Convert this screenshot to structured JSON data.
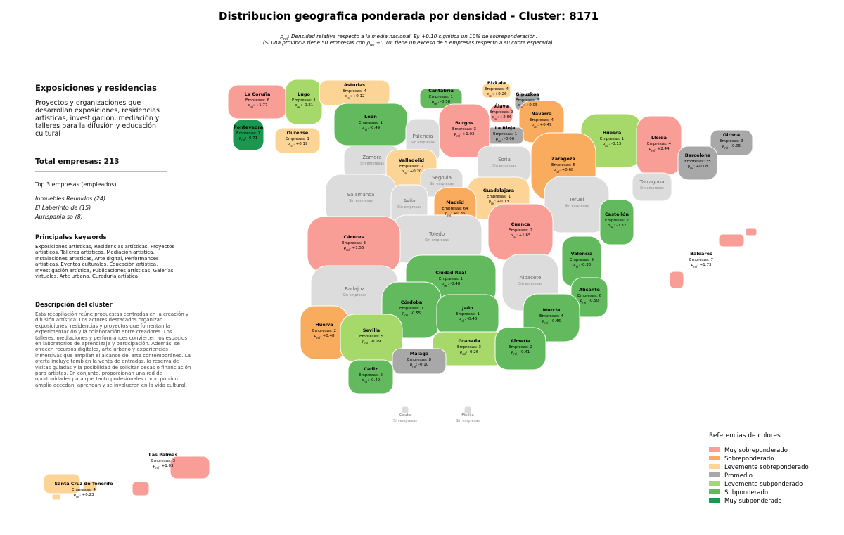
{
  "title": "Distribucion geografica ponderada por densidad - Cluster: 8171",
  "subtitle": [
    [
      {
        "t": "ρ"
      },
      {
        "sub": "rel"
      },
      {
        "t": ": Densidad relativa respecto a la media nacional. Ej: +0.10 significa un 10% de sobreponderación."
      }
    ],
    [
      {
        "t": "(Si una provincia tiene 50 empresas con "
      },
      {
        "t": "ρ"
      },
      {
        "sub": "rel"
      },
      {
        "t": " +0.10, tiene un exceso de 5 empresas respecto a su cuota esperada)."
      }
    ]
  ],
  "sidebar": {
    "heading": "Exposiciones y residencias",
    "summary": "Proyectos y organizaciones que desarrollan exposiciones, residencias artísticas, investigación, mediación y talleres para la difusión y educación cultural",
    "total": "Total empresas: 213",
    "top_title": "Top 3 empresas (empleados)",
    "top": [
      "Inmuebles Reunidos (24)",
      "El Laberinto de (15)",
      "Aurispania sa (8)"
    ],
    "keywords_title": "Principales keywords",
    "keywords": "Exposiciones artísticas, Residencias artísticas, Proyectos artísticos, Talleres artísticos, Mediación artística, Instalaciones artísticas, Arte digital, Performances artísticas, Eventos culturales, Educación artística, Investigación artística, Publicaciones artísticas, Galerías virtuales, Arte urbano, Curaduría artística",
    "description_title": "Descripción del cluster",
    "description": "Esta recopilación reúne propuestas centradas en la creación y difusión artística. Los actores destacados organizan exposiciones, residencias y proyectos que fomentan la experimentación y la colaboración entre creadores. Los talleres, mediaciones y performances convierten los espacios en laboratorios de aprendizaje y participación. Además, se ofrecen recursos digitales, arte urbano y experiencias inmersivas que amplían el alcance del arte contemporáneo. La oferta incluye también la venta de entradas, la reserva de visitas guiadas y la posibilidad de solicitar becas o financiación para artistas. En conjunto, proporcionan una red de oportunidades para que tanto profesionales como público amplio accedan, aprendan y se involucren en la vida cultural."
  },
  "rho_symbol": "ρ",
  "rho_sub": "rel",
  "no_data_label": "Sin empresas",
  "no_data_color": "#dcdcdc",
  "legend": {
    "title": "Referencias de colores",
    "items": [
      {
        "name": "Muy sobreponderado",
        "color": "#f99d97"
      },
      {
        "name": "Sobreponderado",
        "color": "#f9ac5e"
      },
      {
        "name": "Levemente sobreponderado",
        "color": "#fcd495"
      },
      {
        "name": "Promedio",
        "color": "#a8a8a8"
      },
      {
        "name": "Levemente subponderado",
        "color": "#a7d86a"
      },
      {
        "name": "Subponderado",
        "color": "#63ba5e"
      },
      {
        "name": "Muy subponderado",
        "color": "#1a9850"
      }
    ]
  },
  "provinces": [
    {
      "name": "La Coruña",
      "empresas": "Empresas: 6",
      "rho": ": +1.77",
      "category": 0
    },
    {
      "name": "Lugo",
      "empresas": "Empresas: 1",
      "rho": ": -0.21",
      "category": 4
    },
    {
      "name": "Asturias",
      "empresas": "Empresas: 4",
      "rho": ": +0.12",
      "category": 2
    },
    {
      "name": "Cantabria",
      "empresas": "Empresas: 1",
      "rho": ": -0.58",
      "category": 5
    },
    {
      "name": "Bizkaia",
      "empresas": "Empresas: 4",
      "rho": ": +0.26",
      "category": 2
    },
    {
      "name": "Gipuzkoa",
      "empresas": "Empresas: 3",
      "rho": ": +0.05",
      "category": 3
    },
    {
      "name": "Álava",
      "empresas": "Empresas: 3",
      "rho": ": +2.66",
      "category": 0
    },
    {
      "name": "Navarra",
      "empresas": "Empresas: 4",
      "rho": ": +0.49",
      "category": 1
    },
    {
      "name": "La Rioja",
      "empresas": "Empresas: 1",
      "rho": ": -0.06",
      "category": 3
    },
    {
      "name": "Burgos",
      "empresas": "Empresas: 3",
      "rho": ": +1.03",
      "category": 0
    },
    {
      "name": "León",
      "empresas": "Empresas: 1",
      "rho": ": -0.49",
      "category": 5
    },
    {
      "name": "Pontevedra",
      "empresas": "Empresas: 1",
      "rho": ": -0.71",
      "category": 6
    },
    {
      "name": "Ourense",
      "empresas": "Empresas: 1",
      "rho": ": +0.19",
      "category": 2
    },
    {
      "name": "Palencia"
    },
    {
      "name": "Huesca",
      "empresas": "Empresas: 1",
      "rho": ": -0.13",
      "category": 4
    },
    {
      "name": "Lleida",
      "empresas": "Empresas: 4",
      "rho": ": +2.44",
      "category": 0
    },
    {
      "name": "Girona",
      "empresas": "Empresas: 3",
      "rho": ": -0.05",
      "category": 3
    },
    {
      "name": "Barcelona",
      "empresas": "Empresas: 35",
      "rho": ": +0.08",
      "category": 3
    },
    {
      "name": "Zamora"
    },
    {
      "name": "Valladolid",
      "empresas": "Empresas: 2",
      "rho": ": +0.20",
      "category": 2
    },
    {
      "name": "Soria"
    },
    {
      "name": "Zaragoza",
      "empresas": "Empresas: 5",
      "rho": ": +0.68",
      "category": 1
    },
    {
      "name": "Segovia"
    },
    {
      "name": "Tarragona"
    },
    {
      "name": "Salamanca"
    },
    {
      "name": "Ávila"
    },
    {
      "name": "Guadalajara",
      "empresas": "Empresas: 1",
      "rho": ": +0.13",
      "category": 2
    },
    {
      "name": "Madrid",
      "empresas": "Empresas: 64",
      "rho": ": +0.36",
      "category": 1
    },
    {
      "name": "Teruel"
    },
    {
      "name": "Castellón",
      "empresas": "Empresas: 2",
      "rho": ": -0.32",
      "category": 5
    },
    {
      "name": "Cuenca",
      "empresas": "Empresas: 2",
      "rho": ": +1.65",
      "category": 0
    },
    {
      "name": "Toledo"
    },
    {
      "name": "Cáceres",
      "empresas": "Empresas: 3",
      "rho": ": +1.55",
      "category": 0
    },
    {
      "name": "Valencia",
      "empresas": "Empresas: 9",
      "rho": ": -0.36",
      "category": 5
    },
    {
      "name": "Baleares",
      "empresas": "Empresas: 7",
      "rho": ": +1.73",
      "category": 0
    },
    {
      "name": "Ciudad Real",
      "empresas": "Empresas: 1",
      "rho": ": -0.48",
      "category": 5
    },
    {
      "name": "Badajoz"
    },
    {
      "name": "Albacete"
    },
    {
      "name": "Alicante",
      "empresas": "Empresas: 6",
      "rho": ": -0.50",
      "category": 5
    },
    {
      "name": "Córdoba",
      "empresas": "Empresas: 1",
      "rho": ": -0.55",
      "category": 5
    },
    {
      "name": "Jaén",
      "empresas": "Empresas: 1",
      "rho": ": -0.46",
      "category": 5
    },
    {
      "name": "Murcia",
      "empresas": "Empresas: 4",
      "rho": ": -0.46",
      "category": 5
    },
    {
      "name": "Huelva",
      "empresas": "Empresas: 2",
      "rho": ": +0.48",
      "category": 1
    },
    {
      "name": "Sevilla",
      "empresas": "Empresas: 5",
      "rho": ": -0.19",
      "category": 4
    },
    {
      "name": "Granada",
      "empresas": "Empresas: 3",
      "rho": ": -0.26",
      "category": 4
    },
    {
      "name": "Almería",
      "empresas": "Empresas: 2",
      "rho": ": -0.41",
      "category": 5
    },
    {
      "name": "Málaga",
      "empresas": "Empresas: 8",
      "rho": ": -0.10",
      "category": 3
    },
    {
      "name": "Cádiz",
      "empresas": "Empresas: 2",
      "rho": ": -0.49",
      "category": 5
    },
    {
      "name": "Ceuta"
    },
    {
      "name": "Melilla"
    },
    {
      "name": "Las Palmas",
      "empresas": "Empresas: 3",
      "rho": ": +1.03",
      "category": 0
    },
    {
      "name": "Santa Cruz de Tenerife",
      "empresas": "Empresas: 4",
      "rho": ": +0.23",
      "category": 2
    }
  ]
}
